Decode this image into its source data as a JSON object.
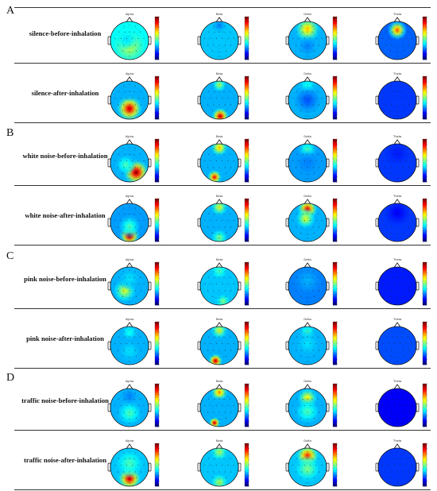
{
  "figure": {
    "band_names": [
      "Alpha",
      "Beta",
      "Delta",
      "Theta"
    ],
    "sections": [
      {
        "letter": "A",
        "rows": [
          {
            "label": "silence-before-inhalation",
            "maps": [
              {
                "base": 0.38,
                "blobs": [
                  [
                    0.0,
                    0.35,
                    0.55,
                    0.6
                  ],
                  [
                    -0.15,
                    -0.05,
                    0.35,
                    0.35
                  ]
                ]
              },
              {
                "base": 0.32,
                "blobs": [
                  [
                    0.0,
                    -0.8,
                    0.25,
                    0.25
                  ]
                ]
              },
              {
                "base": 0.3,
                "blobs": [
                  [
                    0.0,
                    -0.6,
                    0.7,
                    0.45
                  ],
                  [
                    0.0,
                    0.3,
                    0.25,
                    0.35
                  ]
                ]
              },
              {
                "base": 0.22,
                "blobs": [
                  [
                    0.0,
                    -0.55,
                    0.8,
                    0.35
                  ]
                ]
              }
            ]
          },
          {
            "label": "silence-after-inhalation",
            "maps": [
              {
                "base": 0.3,
                "blobs": [
                  [
                    0.0,
                    0.45,
                    0.95,
                    0.45
                  ],
                  [
                    0.0,
                    -0.5,
                    0.3,
                    0.35
                  ]
                ]
              },
              {
                "base": 0.3,
                "blobs": [
                  [
                    0.05,
                    0.85,
                    0.95,
                    0.3
                  ],
                  [
                    0.0,
                    -0.8,
                    0.55,
                    0.25
                  ]
                ]
              },
              {
                "base": 0.3,
                "blobs": [
                  [
                    0.0,
                    -0.75,
                    0.4,
                    0.35
                  ],
                  [
                    0.0,
                    0.0,
                    0.2,
                    0.5
                  ]
                ]
              },
              {
                "base": 0.18,
                "blobs": []
              }
            ]
          }
        ]
      },
      {
        "letter": "B",
        "rows": [
          {
            "label": "white noise-before-inhalation",
            "maps": [
              {
                "base": 0.3,
                "blobs": [
                  [
                    0.35,
                    0.5,
                    1.0,
                    0.45
                  ],
                  [
                    -0.2,
                    0.1,
                    0.45,
                    0.35
                  ]
                ]
              },
              {
                "base": 0.3,
                "blobs": [
                  [
                    0.0,
                    -0.8,
                    0.7,
                    0.3
                  ],
                  [
                    -0.25,
                    0.75,
                    0.9,
                    0.25
                  ]
                ]
              },
              {
                "base": 0.28,
                "blobs": [
                  [
                    0.0,
                    -0.7,
                    0.45,
                    0.35
                  ],
                  [
                    0.0,
                    0.0,
                    0.25,
                    0.45
                  ]
                ]
              },
              {
                "base": 0.18,
                "blobs": [
                  [
                    0.0,
                    -0.5,
                    0.15,
                    0.5
                  ]
                ]
              }
            ]
          },
          {
            "label": "white noise-after-inhalation",
            "maps": [
              {
                "base": 0.28,
                "blobs": [
                  [
                    0.0,
                    0.7,
                    1.0,
                    0.35
                  ],
                  [
                    0.0,
                    0.2,
                    0.45,
                    0.4
                  ]
                ]
              },
              {
                "base": 0.3,
                "blobs": [
                  [
                    0.0,
                    -0.8,
                    0.6,
                    0.3
                  ],
                  [
                    0.0,
                    0.8,
                    0.5,
                    0.3
                  ]
                ]
              },
              {
                "base": 0.3,
                "blobs": [
                  [
                    0.0,
                    -0.7,
                    0.9,
                    0.35
                  ],
                  [
                    -0.1,
                    -0.2,
                    0.6,
                    0.35
                  ]
                ]
              },
              {
                "base": 0.18,
                "blobs": [
                  [
                    0.0,
                    -0.5,
                    0.12,
                    0.5
                  ]
                ]
              }
            ]
          }
        ]
      },
      {
        "letter": "C",
        "rows": [
          {
            "label": "pink noise-before-inhalation",
            "maps": [
              {
                "base": 0.3,
                "blobs": [
                  [
                    -0.25,
                    0.25,
                    0.6,
                    0.4
                  ],
                  [
                    0.0,
                    -0.4,
                    0.35,
                    0.4
                  ]
                ]
              },
              {
                "base": 0.32,
                "blobs": [
                  [
                    0.0,
                    -0.8,
                    0.45,
                    0.3
                  ],
                  [
                    0.2,
                    0.8,
                    0.5,
                    0.25
                  ]
                ]
              },
              {
                "base": 0.25,
                "blobs": [
                  [
                    0.0,
                    -0.3,
                    0.3,
                    0.55
                  ]
                ]
              },
              {
                "base": 0.15,
                "blobs": []
              }
            ]
          },
          {
            "label": "pink noise-after-inhalation",
            "maps": [
              {
                "base": 0.3,
                "blobs": [
                  [
                    0.0,
                    -0.7,
                    0.4,
                    0.3
                  ],
                  [
                    0.0,
                    0.3,
                    0.35,
                    0.4
                  ]
                ]
              },
              {
                "base": 0.3,
                "blobs": [
                  [
                    0.0,
                    -0.8,
                    0.6,
                    0.3
                  ],
                  [
                    -0.2,
                    0.8,
                    0.95,
                    0.25
                  ]
                ]
              },
              {
                "base": 0.3,
                "blobs": [
                  [
                    0.0,
                    -0.7,
                    0.45,
                    0.3
                  ],
                  [
                    0.0,
                    -0.1,
                    0.35,
                    0.45
                  ]
                ]
              },
              {
                "base": 0.2,
                "blobs": [
                  [
                    0.0,
                    -0.8,
                    0.2,
                    0.3
                  ]
                ]
              }
            ]
          }
        ]
      },
      {
        "letter": "D",
        "rows": [
          {
            "label": "traffic noise-before-inhalation",
            "maps": [
              {
                "base": 0.3,
                "blobs": [
                  [
                    0.0,
                    0.3,
                    0.45,
                    0.45
                  ],
                  [
                    0.0,
                    -0.6,
                    0.25,
                    0.3
                  ]
                ]
              },
              {
                "base": 0.3,
                "blobs": [
                  [
                    0.0,
                    -0.8,
                    0.75,
                    0.3
                  ],
                  [
                    -0.25,
                    0.8,
                    0.95,
                    0.2
                  ],
                  [
                    0.0,
                    0.0,
                    0.3,
                    0.4
                  ]
                ]
              },
              {
                "base": 0.3,
                "blobs": [
                  [
                    0.0,
                    -0.5,
                    0.65,
                    0.35
                  ],
                  [
                    0.0,
                    0.2,
                    0.45,
                    0.45
                  ]
                ]
              },
              {
                "base": 0.12,
                "blobs": []
              }
            ]
          },
          {
            "label": "traffic noise-after-inhalation",
            "maps": [
              {
                "base": 0.32,
                "blobs": [
                  [
                    0.0,
                    0.6,
                    0.95,
                    0.4
                  ],
                  [
                    0.0,
                    -0.2,
                    0.45,
                    0.5
                  ]
                ]
              },
              {
                "base": 0.32,
                "blobs": [
                  [
                    0.0,
                    -0.8,
                    0.55,
                    0.3
                  ],
                  [
                    0.0,
                    0.8,
                    0.55,
                    0.3
                  ]
                ]
              },
              {
                "base": 0.32,
                "blobs": [
                  [
                    0.0,
                    -0.6,
                    0.85,
                    0.4
                  ],
                  [
                    0.0,
                    0.1,
                    0.5,
                    0.45
                  ]
                ]
              },
              {
                "base": 0.18,
                "blobs": [
                  [
                    0.0,
                    -0.5,
                    0.18,
                    0.5
                  ]
                ]
              }
            ]
          }
        ]
      }
    ]
  }
}
